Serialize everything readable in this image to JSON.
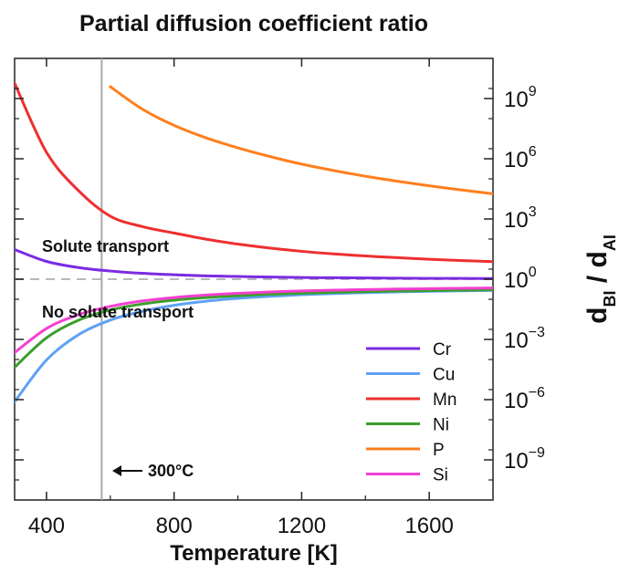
{
  "chart_data": {
    "type": "line",
    "title": "Partial diffusion coefficient ratio",
    "xlabel": "Temperature [K]",
    "ylabel_main": "d",
    "ylabel_num_sub": "BI",
    "ylabel_sep": " / d",
    "ylabel_den_sub": "AI",
    "y_scale": "log10",
    "y_axis_side": "right",
    "xlim": [
      300,
      1800
    ],
    "ylim_exponent": [
      -11,
      11
    ],
    "x_ticks": [
      400,
      800,
      1200,
      1600
    ],
    "x_tick_labels": [
      "400",
      "800",
      "1200",
      "1600"
    ],
    "y_ticks": [
      {
        "base": "10",
        "exp": "9",
        "value": 1000000000.0
      },
      {
        "base": "10",
        "exp": "6",
        "value": 1000000.0
      },
      {
        "base": "10",
        "exp": "3",
        "value": 1000.0
      },
      {
        "base": "10",
        "exp": "0",
        "value": 1
      },
      {
        "base": "10",
        "exp": "−3",
        "value": 0.001
      },
      {
        "base": "10",
        "exp": "−6",
        "value": 1e-06
      },
      {
        "base": "10",
        "exp": "−9",
        "value": 1e-09
      }
    ],
    "grid": false,
    "reference_line": {
      "y": 1,
      "style": "dashed",
      "color": "#b8b8b8"
    },
    "vertical_marker": {
      "x": 573,
      "color": "#a8a8a8",
      "label": "300°C"
    },
    "annotations": {
      "upper": "Solute transport",
      "lower": "No solute transport"
    },
    "legend_position": "bottom-right",
    "x": [
      300,
      400,
      500,
      600,
      700,
      800,
      900,
      1000,
      1100,
      1200,
      1300,
      1400,
      1500,
      1600,
      1700,
      1800
    ],
    "series": [
      {
        "name": "Cr",
        "color": "#7b2be2",
        "values": [
          30,
          7.7,
          3.8,
          2.55,
          1.97,
          1.66,
          1.47,
          1.36,
          1.28,
          1.21,
          1.18,
          1.15,
          1.12,
          1.1,
          1.09,
          1.08
        ]
      },
      {
        "name": "Cu",
        "color": "#5ea2f5",
        "values": [
          7.8e-07,
          9.4e-05,
          0.0017,
          0.0092,
          0.025,
          0.05,
          0.08,
          0.111,
          0.14,
          0.168,
          0.192,
          0.214,
          0.233,
          0.249,
          0.263,
          0.276
        ]
      },
      {
        "name": "Mn",
        "color": "#ee2f2f",
        "values": [
          5800000000.0,
          2100000.0,
          26000.0,
          1380,
          420,
          200,
          99,
          56,
          35.5,
          24.5,
          18.2,
          14.4,
          11.8,
          9.9,
          8.5,
          7.5
        ]
      },
      {
        "name": "Ni",
        "color": "#3b9f2a",
        "values": [
          4.1e-05,
          0.0012,
          0.009,
          0.029,
          0.058,
          0.09,
          0.121,
          0.15,
          0.177,
          0.2,
          0.222,
          0.24,
          0.257,
          0.272,
          0.285,
          0.297
        ]
      },
      {
        "name": "P",
        "color": "#ff7f1e",
        "values": [
          null,
          null,
          null,
          3900000000.0,
          300000000.0,
          46000000.0,
          11000000.0,
          3500000.0,
          1300000.0,
          540000.0,
          260000.0,
          135000.0,
          76000.0,
          45000.0,
          28000.0,
          18000.0
        ]
      },
      {
        "name": "Si",
        "color": "#f53fd2",
        "values": [
          0.00022,
          0.0035,
          0.017,
          0.044,
          0.082,
          0.122,
          0.162,
          0.198,
          0.23,
          0.259,
          0.283,
          0.305,
          0.323,
          0.339,
          0.353,
          0.366
        ]
      }
    ]
  }
}
